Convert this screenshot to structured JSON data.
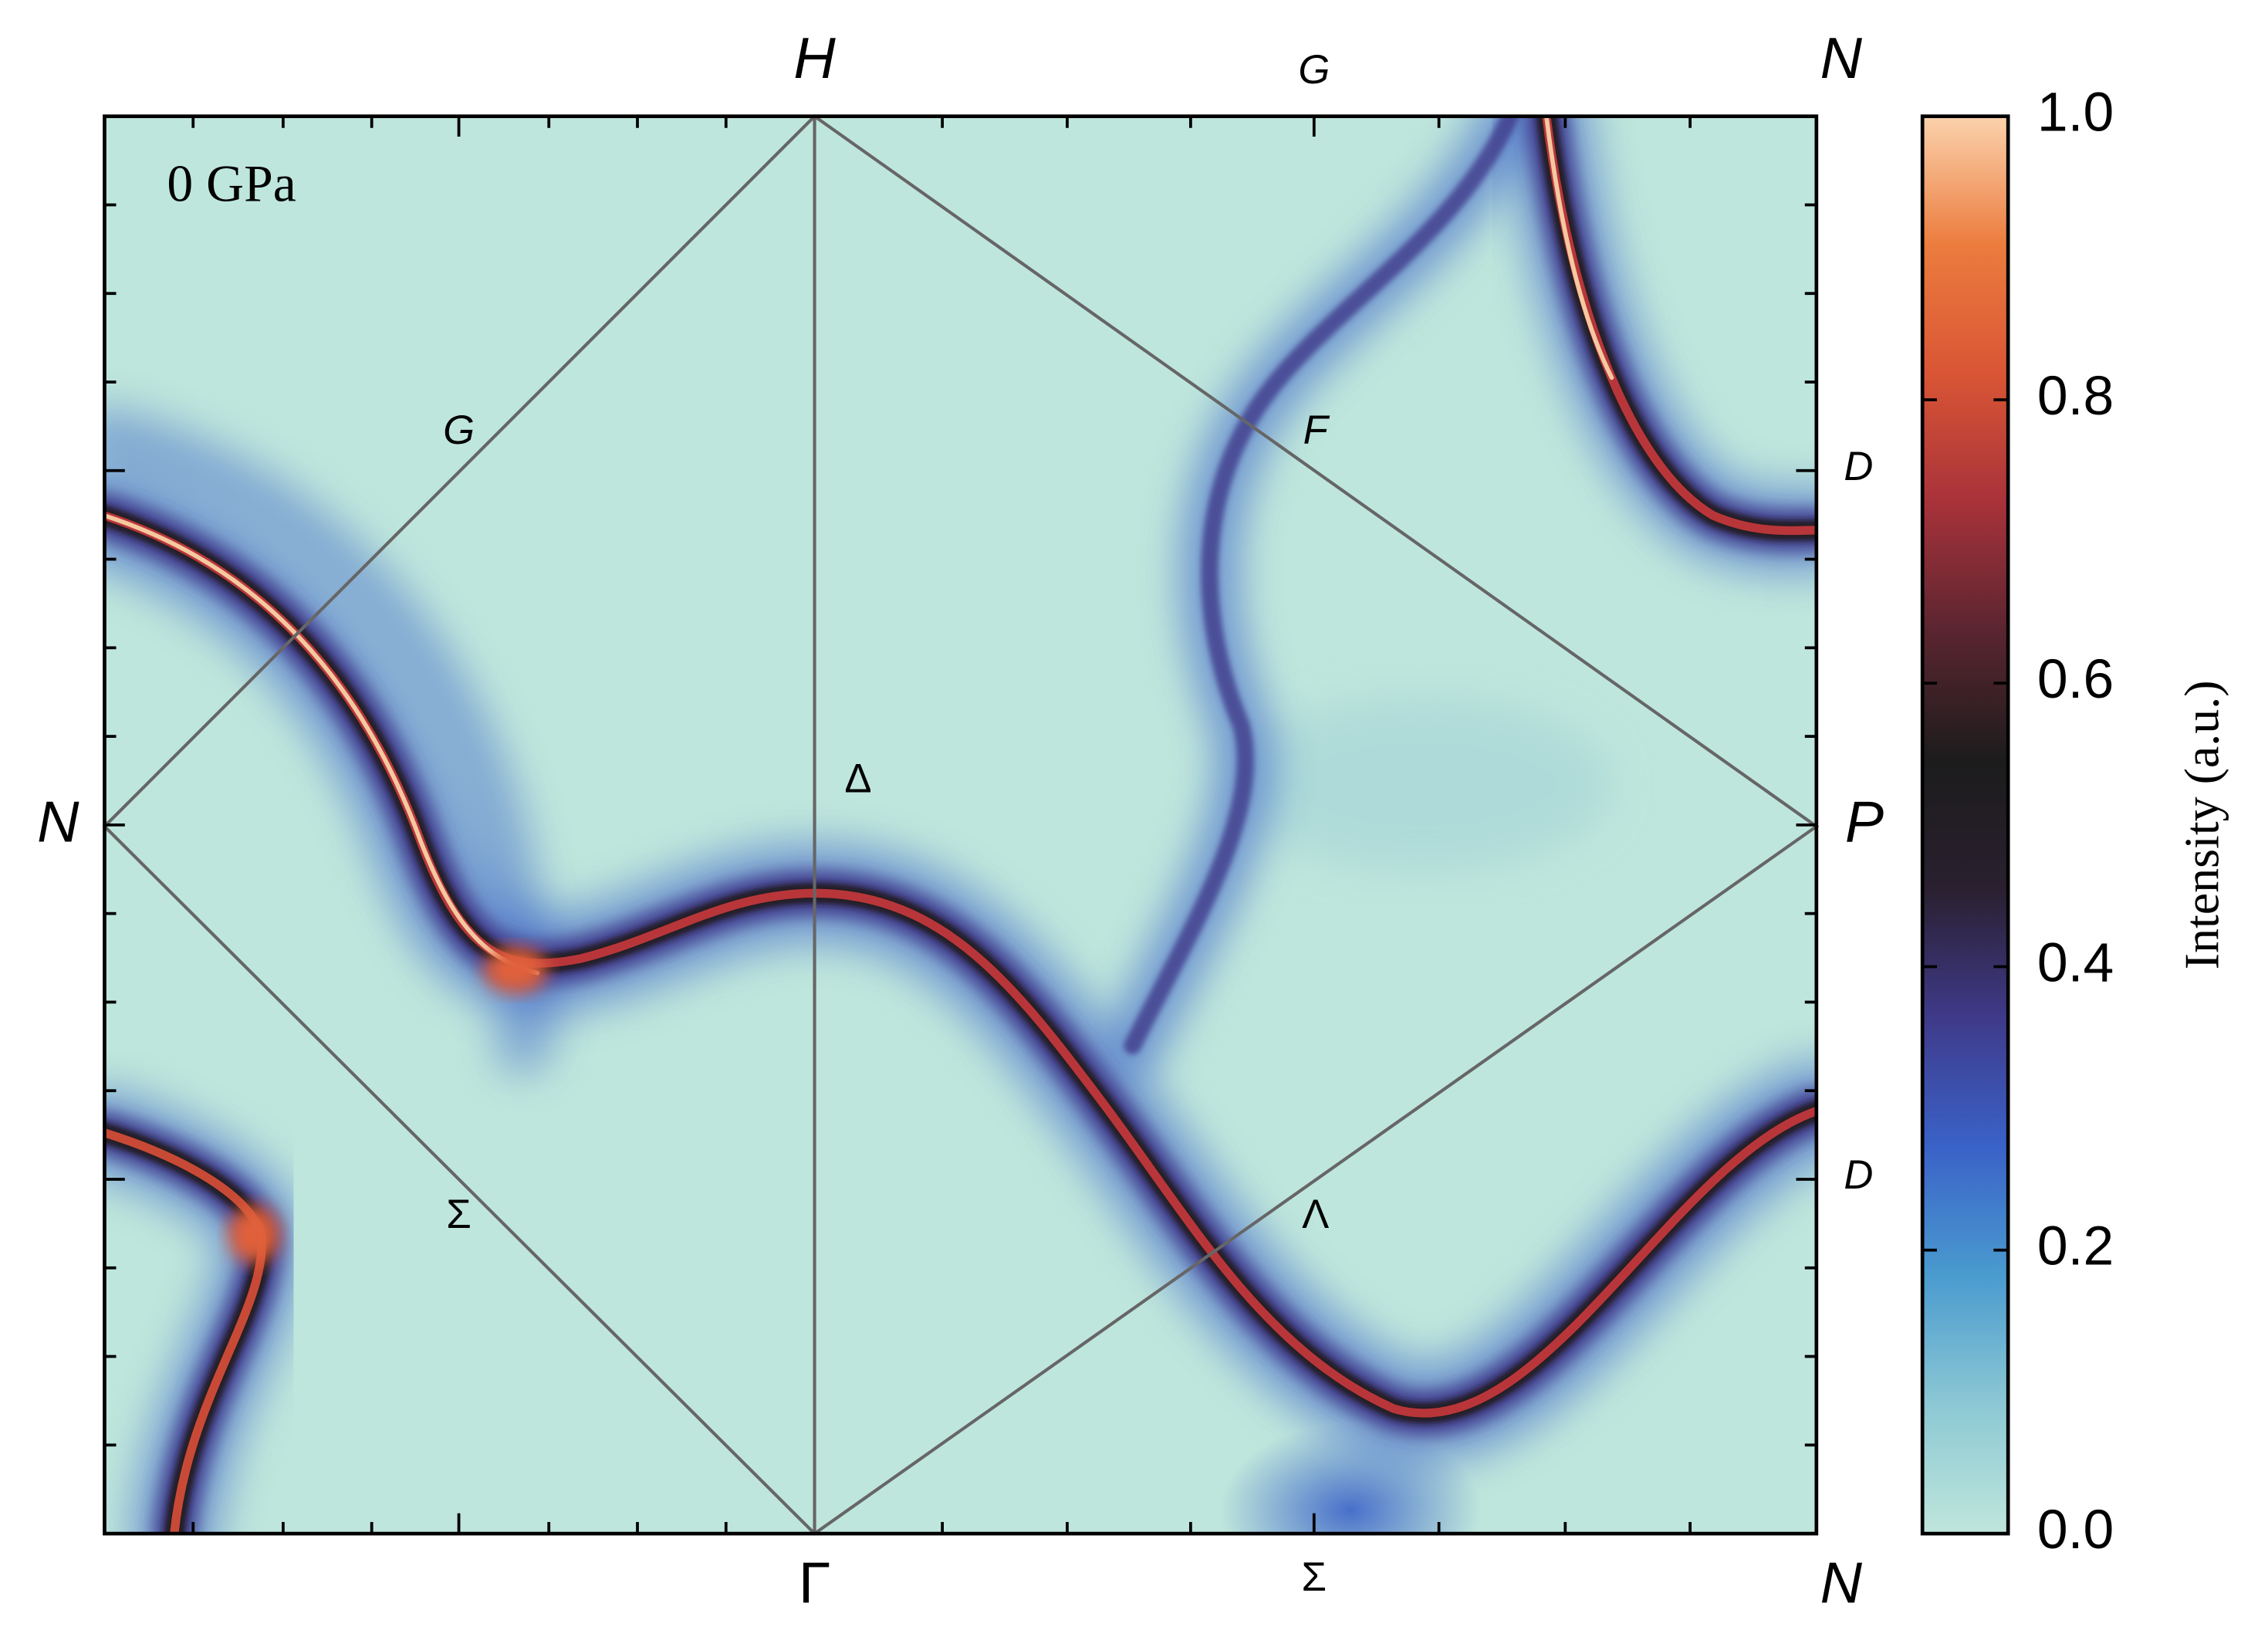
{
  "chart_data": {
    "type": "heatmap",
    "annotation": "0 GPa",
    "colorbar_label": "Intensity (a.u.)",
    "zlim": [
      0,
      1
    ],
    "zticks": [
      {
        "value": 0,
        "label": "0.0"
      },
      {
        "value": 0.2,
        "label": "0.2"
      },
      {
        "value": 0.4,
        "label": "0.4"
      },
      {
        "value": 0.6,
        "label": "0.6"
      },
      {
        "value": 0.8,
        "label": "0.8"
      },
      {
        "value": 1,
        "label": "1.0"
      }
    ],
    "colormap": [
      "#bfe6dc",
      "#8cc8d4",
      "#4a9bcf",
      "#3a62c8",
      "#3f3a8a",
      "#2a2030",
      "#1c1c1c",
      "#5a2530",
      "#a8323a",
      "#d95535",
      "#ec7c3e",
      "#fbd2ac"
    ],
    "point_labels": [
      "H",
      "G",
      "N",
      "N",
      "P",
      "Γ",
      "Σ",
      "N",
      "D",
      "D",
      "G",
      "F",
      "Δ",
      "Σ",
      "Λ"
    ]
  }
}
